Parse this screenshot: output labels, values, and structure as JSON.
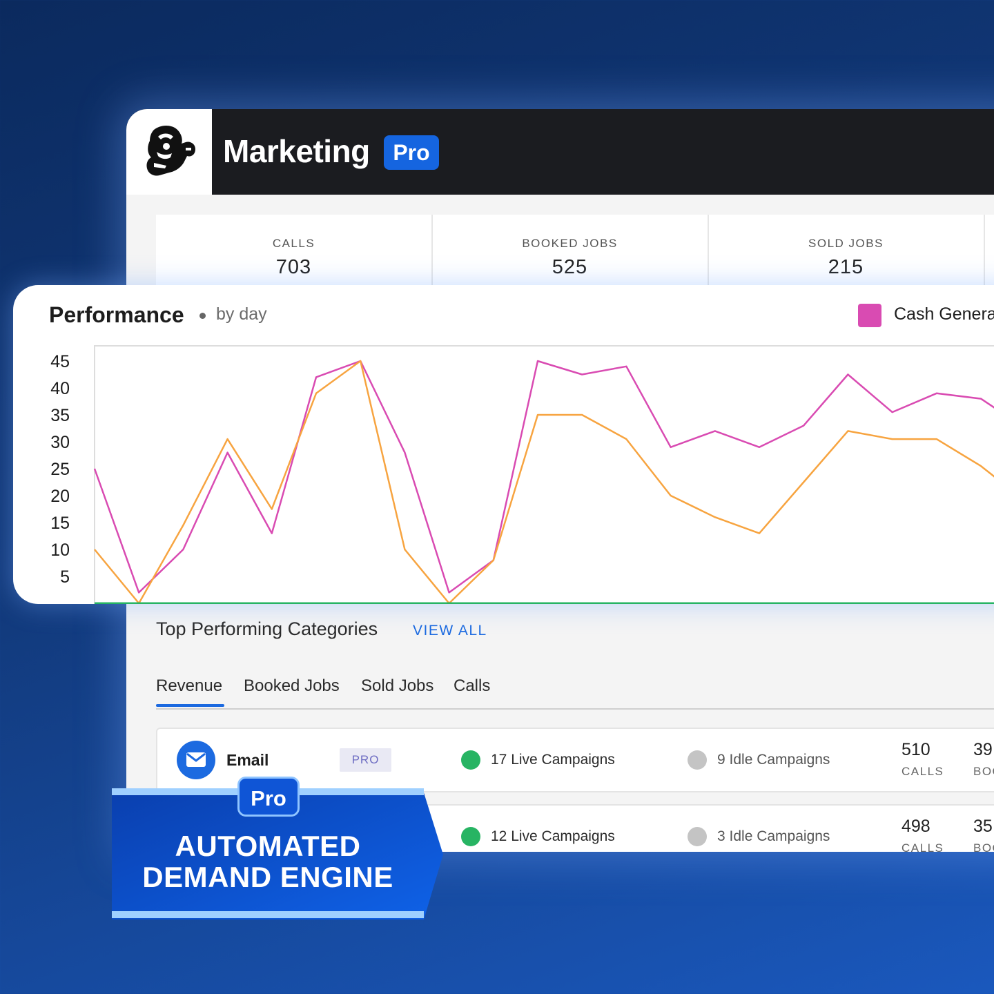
{
  "header": {
    "app_title": "Marketing",
    "pro_badge": "Pro"
  },
  "stats": [
    {
      "label": "CALLS",
      "value": "703"
    },
    {
      "label": "BOOKED JOBS",
      "value": "525"
    },
    {
      "label": "SOLD JOBS",
      "value": "215"
    }
  ],
  "performance": {
    "title": "Performance",
    "subtitle": "by day",
    "legend_label": "Cash Genera"
  },
  "chart_data": {
    "type": "line",
    "ylim": [
      0,
      48
    ],
    "yticks": [
      "45",
      "40",
      "35",
      "30",
      "25",
      "20",
      "15",
      "10",
      "5"
    ],
    "x": [
      0,
      1,
      2,
      3,
      4,
      5,
      6,
      7,
      8,
      9,
      10,
      11,
      12,
      13,
      14,
      15,
      16,
      17,
      18,
      19,
      20,
      21,
      22
    ],
    "series": [
      {
        "color": "#d94bb2",
        "values": [
          25,
          2,
          10,
          28,
          13,
          42,
          45,
          28,
          2,
          8,
          45,
          42.5,
          44,
          29,
          32,
          29,
          33,
          42.5,
          35.5,
          39,
          38,
          32.5,
          34
        ]
      },
      {
        "color": "#f7a440",
        "values": [
          10,
          0,
          14.5,
          30.5,
          17.5,
          39,
          45,
          10,
          0,
          8,
          35,
          35,
          30.5,
          20,
          16,
          13,
          22.5,
          32,
          30.5,
          30.5,
          25.5,
          19,
          20
        ]
      },
      {
        "color": "#27b463",
        "values": [
          0,
          0,
          0,
          0,
          0,
          0,
          0,
          0,
          0,
          0,
          0,
          0,
          0,
          0,
          0,
          0,
          0,
          0,
          0,
          0,
          0,
          0,
          0
        ]
      }
    ]
  },
  "categories": {
    "title": "Top Performing Categories",
    "view_all": "VIEW ALL",
    "tabs": [
      "Revenue",
      "Booked Jobs",
      "Sold Jobs",
      "Calls"
    ],
    "rows": [
      {
        "name": "Email",
        "badge": "PRO",
        "live": "17 Live Campaigns",
        "idle": "9 Idle Campaigns",
        "calls": "510",
        "calls_label": "CALLS",
        "booked": "39",
        "booked_label": "BOO"
      },
      {
        "name": "",
        "badge": "",
        "live": "12 Live Campaigns",
        "idle": "3 Idle Campaigns",
        "calls": "498",
        "calls_label": "CALLS",
        "booked": "35",
        "booked_label": "BOO"
      }
    ]
  },
  "promo": {
    "badge": "Pro",
    "line1": "AUTOMATED",
    "line2": "DEMAND ENGINE"
  },
  "colors": {
    "accent": "#1c6ae0",
    "legend_pink": "#d94bb2",
    "live_green": "#27b463",
    "idle_gray": "#c4c4c4"
  },
  "icons": [
    "mascot-logo-icon",
    "envelope-icon"
  ]
}
